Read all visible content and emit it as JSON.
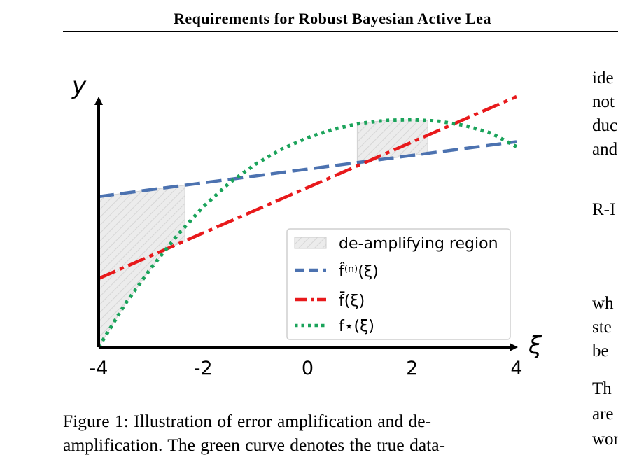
{
  "header": {
    "running_title": "Requirements for Robust Bayesian Active Lea"
  },
  "figure": {
    "caption_lines": [
      "Figure 1: Illustration of error amplification and de-",
      "amplification. The green curve denotes the true data-"
    ]
  },
  "right_column": {
    "fragments": [
      "ide",
      "not",
      "duc",
      "and",
      "R-I",
      "wh",
      "ste",
      "be",
      "Th",
      "are",
      "wor"
    ]
  },
  "chart_data": {
    "type": "line",
    "xlabel": "ξ",
    "ylabel": "y",
    "xlim": [
      -4,
      4
    ],
    "ylim": [
      0,
      1
    ],
    "xticks": [
      "-4",
      "-2",
      "0",
      "2",
      "4"
    ],
    "grid": false,
    "legend_position": "lower-right",
    "series": [
      {
        "name": "f̂⁽ⁿ⁾(ξ)",
        "style": "dashed",
        "color": "#4c72b0",
        "x": [
          -4,
          4
        ],
        "y": [
          0.601,
          0.82
        ]
      },
      {
        "name": "f̄(ξ)",
        "style": "dash-dot",
        "color": "#e8191b",
        "x": [
          -4,
          4
        ],
        "y": [
          0.274,
          1.0
        ]
      },
      {
        "name": "f⋆(ξ)",
        "style": "dotted",
        "color": "#1aa35a",
        "x": [
          -4,
          -3.5,
          -3,
          -2.5,
          -2,
          -1.5,
          -1,
          -0.5,
          0,
          0.5,
          1,
          1.5,
          2,
          2.5,
          3,
          3.5,
          4
        ],
        "y": [
          0.0,
          0.17,
          0.315,
          0.445,
          0.56,
          0.655,
          0.73,
          0.79,
          0.836,
          0.87,
          0.893,
          0.905,
          0.908,
          0.902,
          0.885,
          0.855,
          0.8
        ]
      }
    ],
    "regions": [
      {
        "name": "de-amplifying region",
        "x": [
          -4,
          -2.35
        ]
      },
      {
        "name": "de-amplifying region",
        "x": [
          0.95,
          2.3
        ]
      }
    ]
  }
}
